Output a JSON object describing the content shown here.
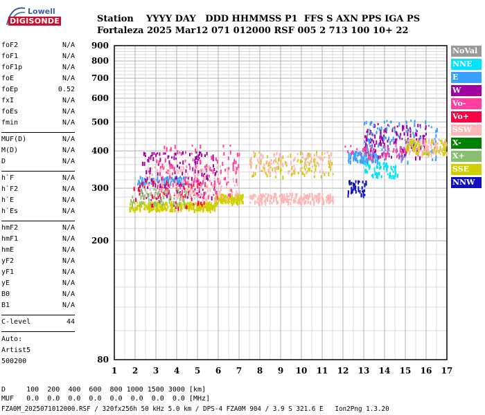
{
  "logo": {
    "line1": "Lowell",
    "line2": "DIGISONDE"
  },
  "header": {
    "labels": "Station    YYYY DAY   DDD HHMMSS P1  FFS S AXN PPS IGA PS",
    "values": "Fortaleza 2025 Mar12 071 012000 RSF 005 2 713 100 10+ 22"
  },
  "params": [
    {
      "name": "foF2",
      "value": "N/A"
    },
    {
      "name": "foF1",
      "value": "N/A"
    },
    {
      "name": "foF1p",
      "value": "N/A"
    },
    {
      "name": "foE",
      "value": "N/A"
    },
    {
      "name": "foEp",
      "value": "0.52"
    },
    {
      "name": "fxI",
      "value": "N/A"
    },
    {
      "name": "foEs",
      "value": "N/A"
    },
    {
      "name": "fmin",
      "value": "N/A"
    },
    {
      "name": "MUF(D)",
      "value": "N/A"
    },
    {
      "name": "M(D)",
      "value": "N/A"
    },
    {
      "name": "D",
      "value": "N/A"
    },
    {
      "name": "h`F",
      "value": "N/A"
    },
    {
      "name": "h`F2",
      "value": "N/A"
    },
    {
      "name": "h`E",
      "value": "N/A"
    },
    {
      "name": "h`Es",
      "value": "N/A"
    },
    {
      "name": "hmF2",
      "value": "N/A"
    },
    {
      "name": "hmF1",
      "value": "N/A"
    },
    {
      "name": "hmE",
      "value": "N/A"
    },
    {
      "name": "yF2",
      "value": "N/A"
    },
    {
      "name": "yF1",
      "value": "N/A"
    },
    {
      "name": "yE",
      "value": "N/A"
    },
    {
      "name": "B0",
      "value": "N/A"
    },
    {
      "name": "B1",
      "value": "N/A"
    },
    {
      "name": "C-level",
      "value": "44"
    }
  ],
  "auto": {
    "line1": "Auto:",
    "line2": "Artist5",
    "line3": "500200"
  },
  "legend": [
    {
      "label": "NoVal",
      "bg": "#999999",
      "fg": "#ffffff"
    },
    {
      "label": "NNE",
      "bg": "#00e5ff",
      "fg": "#ffffff"
    },
    {
      "label": "E",
      "bg": "#3aa0ff",
      "fg": "#ffffff"
    },
    {
      "label": "W",
      "bg": "#a000a0",
      "fg": "#ffffff"
    },
    {
      "label": "Vo-",
      "bg": "#ff40a0",
      "fg": "#ffffff"
    },
    {
      "label": "Vo+",
      "bg": "#ff0040",
      "fg": "#ffffff"
    },
    {
      "label": "SSW",
      "bg": "#ffb6b6",
      "fg": "#ffffff"
    },
    {
      "label": "X-",
      "bg": "#008000",
      "fg": "#ffffff"
    },
    {
      "label": "X+",
      "bg": "#88c070",
      "fg": "#ffffff"
    },
    {
      "label": "SSE",
      "bg": "#d0d000",
      "fg": "#ffffff"
    },
    {
      "label": "NNW",
      "bg": "#1010c0",
      "fg": "#ffffff"
    }
  ],
  "footer": {
    "d_line": "D     100  200  400  600  800 1000 1500 3000 [km]",
    "muf_line": "MUF   0.0  0.0  0.0  0.0  0.0  0.0  0.0  0.0 [MHz]",
    "file_line": "FZA0M_2025071012000.RSF / 320fx256h 50 kHz 5.0 km / DPS-4 FZA0M 904 / 3.9 S 321.6 E   Ion2Png 1.3.20"
  },
  "chart_data": {
    "type": "scatter",
    "xlim": [
      1,
      17
    ],
    "ylim": [
      80,
      900
    ],
    "yscale": "log",
    "x_ticks": [
      1,
      2,
      3,
      4,
      5,
      6,
      7,
      8,
      9,
      10,
      11,
      12,
      13,
      14,
      15,
      16,
      17
    ],
    "y_ticks": [
      80,
      200,
      300,
      400,
      500,
      600,
      700,
      800,
      900
    ],
    "grid": true,
    "legend_position": "right",
    "clusters": [
      {
        "mode": "SSE",
        "x_range": [
          1.7,
          5.9
        ],
        "h_range": [
          255,
          272
        ],
        "count": 260
      },
      {
        "mode": "SSE",
        "x_range": [
          5.8,
          7.2
        ],
        "h_range": [
          268,
          288
        ],
        "count": 120
      },
      {
        "mode": "SSW",
        "x_range": [
          7.5,
          11.5
        ],
        "h_range": [
          270,
          290
        ],
        "count": 200
      },
      {
        "mode": "E",
        "x_range": [
          2.1,
          4.6
        ],
        "h_range": [
          310,
          330
        ],
        "count": 90
      },
      {
        "mode": "W",
        "x_range": [
          2.3,
          5.9
        ],
        "h_range": [
          280,
          400
        ],
        "count": 140
      },
      {
        "mode": "Vo+",
        "x_range": [
          1.8,
          5.5
        ],
        "h_range": [
          260,
          320
        ],
        "count": 90
      },
      {
        "mode": "SSW",
        "x_range": [
          2.5,
          7.0
        ],
        "h_range": [
          275,
          360
        ],
        "count": 180
      },
      {
        "mode": "Vo-",
        "x_range": [
          3.0,
          7.0
        ],
        "h_range": [
          280,
          420
        ],
        "count": 110
      },
      {
        "mode": "X+",
        "x_range": [
          1.7,
          4.5
        ],
        "h_range": [
          265,
          300
        ],
        "count": 60
      },
      {
        "mode": "SSE",
        "x_range": [
          7.5,
          11.5
        ],
        "h_range": [
          330,
          400
        ],
        "count": 90
      },
      {
        "mode": "SSW",
        "x_range": [
          7.5,
          11.4
        ],
        "h_range": [
          340,
          400
        ],
        "count": 100
      },
      {
        "mode": "E",
        "x_range": [
          12.2,
          13.7
        ],
        "h_range": [
          370,
          400
        ],
        "count": 90
      },
      {
        "mode": "NNE",
        "x_range": [
          13.0,
          14.6
        ],
        "h_range": [
          330,
          370
        ],
        "count": 60
      },
      {
        "mode": "NNW",
        "x_range": [
          12.2,
          13.1
        ],
        "h_range": [
          285,
          320
        ],
        "count": 40
      },
      {
        "mode": "W",
        "x_range": [
          13.0,
          16.0
        ],
        "h_range": [
          380,
          500
        ],
        "count": 140
      },
      {
        "mode": "E",
        "x_range": [
          13.0,
          16.5
        ],
        "h_range": [
          370,
          510
        ],
        "count": 110
      },
      {
        "mode": "SSW",
        "x_range": [
          15.0,
          17.0
        ],
        "h_range": [
          390,
          440
        ],
        "count": 90
      },
      {
        "mode": "SSE",
        "x_range": [
          15.0,
          17.0
        ],
        "h_range": [
          395,
          440
        ],
        "count": 60
      },
      {
        "mode": "Vo-",
        "x_range": [
          12.0,
          15.0
        ],
        "h_range": [
          380,
          420
        ],
        "count": 50
      }
    ]
  }
}
